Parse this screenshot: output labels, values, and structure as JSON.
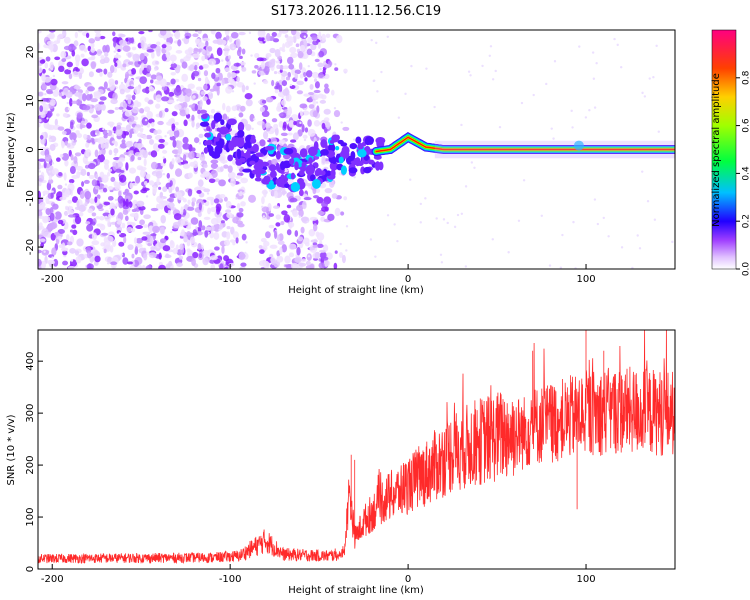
{
  "title": "S173.2026.111.12.56.C19",
  "chart_data": [
    {
      "type": "heatmap",
      "name": "spectrogram",
      "xlabel": "Height of straight line (km)",
      "ylabel": "Frequency (Hz)",
      "xlim": [
        -208,
        150
      ],
      "ylim": [
        -24.5,
        24.5
      ],
      "xticks": [
        -200,
        -100,
        0,
        100
      ],
      "yticks": [
        -20,
        -10,
        0,
        10,
        20
      ],
      "colorbar": {
        "label": "Normalized spectral amplitude",
        "range": [
          0,
          1
        ],
        "ticks": [
          "0.0",
          "0.2",
          "0.4",
          "0.6",
          "0.8"
        ],
        "tick_values": [
          0,
          0.2,
          0.4,
          0.6,
          0.8
        ],
        "colors": [
          "#ffffff",
          "#c080ff",
          "#8000ff",
          "#0000ff",
          "#00ffff",
          "#00ff00",
          "#ffff00",
          "#ff8000",
          "#ff0000",
          "#ff0080"
        ]
      },
      "carrier_track": [
        [
          -110,
          3
        ],
        [
          -100,
          2
        ],
        [
          -95,
          1
        ],
        [
          -85,
          -2
        ],
        [
          -75,
          -4
        ],
        [
          -60,
          -4
        ],
        [
          -50,
          -3
        ],
        [
          -40,
          -1.5
        ],
        [
          -30,
          -1
        ],
        [
          -20,
          -0.5
        ],
        [
          -10,
          0
        ],
        [
          0,
          2.5
        ],
        [
          10,
          0.5
        ],
        [
          20,
          0
        ],
        [
          150,
          0
        ]
      ],
      "noise_extent_km": [
        -208,
        -45
      ],
      "gap_km": [
        -95,
        -75
      ],
      "strong_signal_km": [
        -18,
        150
      ]
    },
    {
      "type": "line",
      "name": "snr",
      "xlabel": "Height of straight line (km)",
      "ylabel": "SNR (10 * v/v)",
      "xlim": [
        -208,
        150
      ],
      "ylim": [
        0,
        460
      ],
      "xticks": [
        -200,
        -100,
        0,
        100
      ],
      "yticks": [
        0,
        100,
        200,
        300,
        400
      ],
      "color": "#ff2a2a",
      "trend": [
        [
          -208,
          20
        ],
        [
          -110,
          22
        ],
        [
          -95,
          25
        ],
        [
          -85,
          45
        ],
        [
          -80,
          55
        ],
        [
          -70,
          28
        ],
        [
          -45,
          25
        ],
        [
          -36,
          30
        ],
        [
          -33,
          150
        ],
        [
          -30,
          60
        ],
        [
          -25,
          90
        ],
        [
          -15,
          130
        ],
        [
          -5,
          150
        ],
        [
          10,
          185
        ],
        [
          25,
          225
        ],
        [
          40,
          245
        ],
        [
          55,
          260
        ],
        [
          65,
          262
        ],
        [
          70,
          275
        ],
        [
          85,
          285
        ],
        [
          100,
          300
        ],
        [
          120,
          305
        ],
        [
          150,
          300
        ]
      ],
      "spikes": [
        {
          "x": -32,
          "y": 220
        },
        {
          "x": -30,
          "y": 210
        },
        {
          "x": 100,
          "y": 460
        },
        {
          "x": 110,
          "y": 420
        },
        {
          "x": 70,
          "y": 420
        },
        {
          "x": 95,
          "y": 115
        }
      ]
    }
  ]
}
